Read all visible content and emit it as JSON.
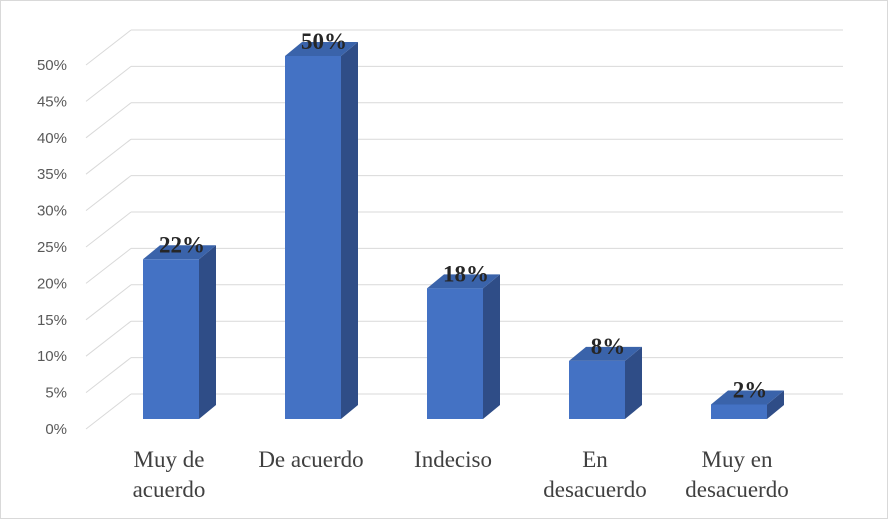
{
  "chart_data": {
    "type": "bar",
    "style": "3d-column",
    "categories": [
      [
        "Muy de",
        "acuerdo"
      ],
      [
        "De acuerdo"
      ],
      [
        "Indeciso"
      ],
      [
        "En",
        "desacuerdo"
      ],
      [
        "Muy en",
        "desacuerdo"
      ]
    ],
    "values": [
      22,
      50,
      18,
      8,
      2
    ],
    "value_labels": [
      "22%",
      "50%",
      "18%",
      "8%",
      "2%"
    ],
    "y_ticks": [
      "0%",
      "5%",
      "10%",
      "15%",
      "20%",
      "25%",
      "30%",
      "35%",
      "40%",
      "45%",
      "50%"
    ],
    "ylim": [
      0,
      50
    ],
    "grid": true,
    "legend": "none",
    "title": "",
    "xlabel": "",
    "ylabel": "",
    "colors": {
      "bar_front": "#4472c4",
      "bar_side": "#2f4d87",
      "bar_top": "#3a63aa",
      "grid": "#d9d9d9",
      "tick_text": "#595959",
      "category_text": "#404040",
      "value_text": "#262626"
    }
  }
}
